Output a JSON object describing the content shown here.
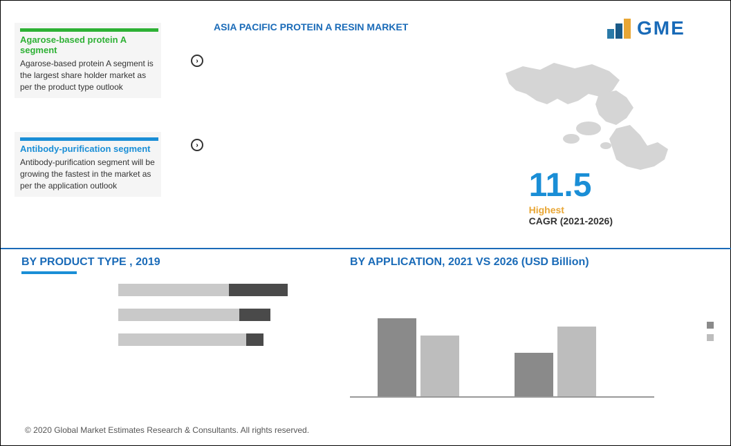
{
  "header": {
    "title": "ASIA PACIFIC PROTEIN A RESIN MARKET"
  },
  "logo": {
    "text": "GME"
  },
  "callout1": {
    "title": "Agarose-based protein A segment",
    "desc": "Agarose-based protein A segment is the largest share holder market as per the product type outlook",
    "bar_color": "#2eb135",
    "title_color": "#2eb135"
  },
  "callout2": {
    "title": "Antibody-purification segment",
    "desc": "Antibody-purification segment will be growing the fastest in the market as per the application outlook",
    "bar_color": "#1a8ed6",
    "title_color": "#1a8ed6"
  },
  "cagr": {
    "value": "11.5",
    "value_color": "#1a8ed6",
    "label1": "Highest",
    "label2": "CAGR (2021-2026)"
  },
  "product_type": {
    "title": "BY  PRODUCT TYPE , 2019",
    "underline_color": "#1a8ed6",
    "bars": [
      {
        "seg1_w": 160,
        "seg1_c": "#c9c9c9",
        "seg2_w": 85,
        "seg2_c": "#4a4a4a"
      },
      {
        "seg1_w": 175,
        "seg1_c": "#c9c9c9",
        "seg2_w": 45,
        "seg2_c": "#4a4a4a"
      },
      {
        "seg1_w": 185,
        "seg1_c": "#c9c9c9",
        "seg2_w": 25,
        "seg2_c": "#4a4a4a"
      }
    ]
  },
  "application": {
    "title": "BY APPLICATION, 2021 VS 2026 (USD Billion)",
    "bars": [
      {
        "h1": 115,
        "c1": "#8a8a8a",
        "h2": 90,
        "c2": "#bdbdbd"
      },
      {
        "h1": 65,
        "c1": "#8a8a8a",
        "h2": 103,
        "c2": "#bdbdbd"
      }
    ],
    "legend": [
      {
        "c": "#8a8a8a"
      },
      {
        "c": "#bdbdbd"
      }
    ]
  },
  "footer": "© 2020 Global Market Estimates Research & Consultants. All rights reserved."
}
